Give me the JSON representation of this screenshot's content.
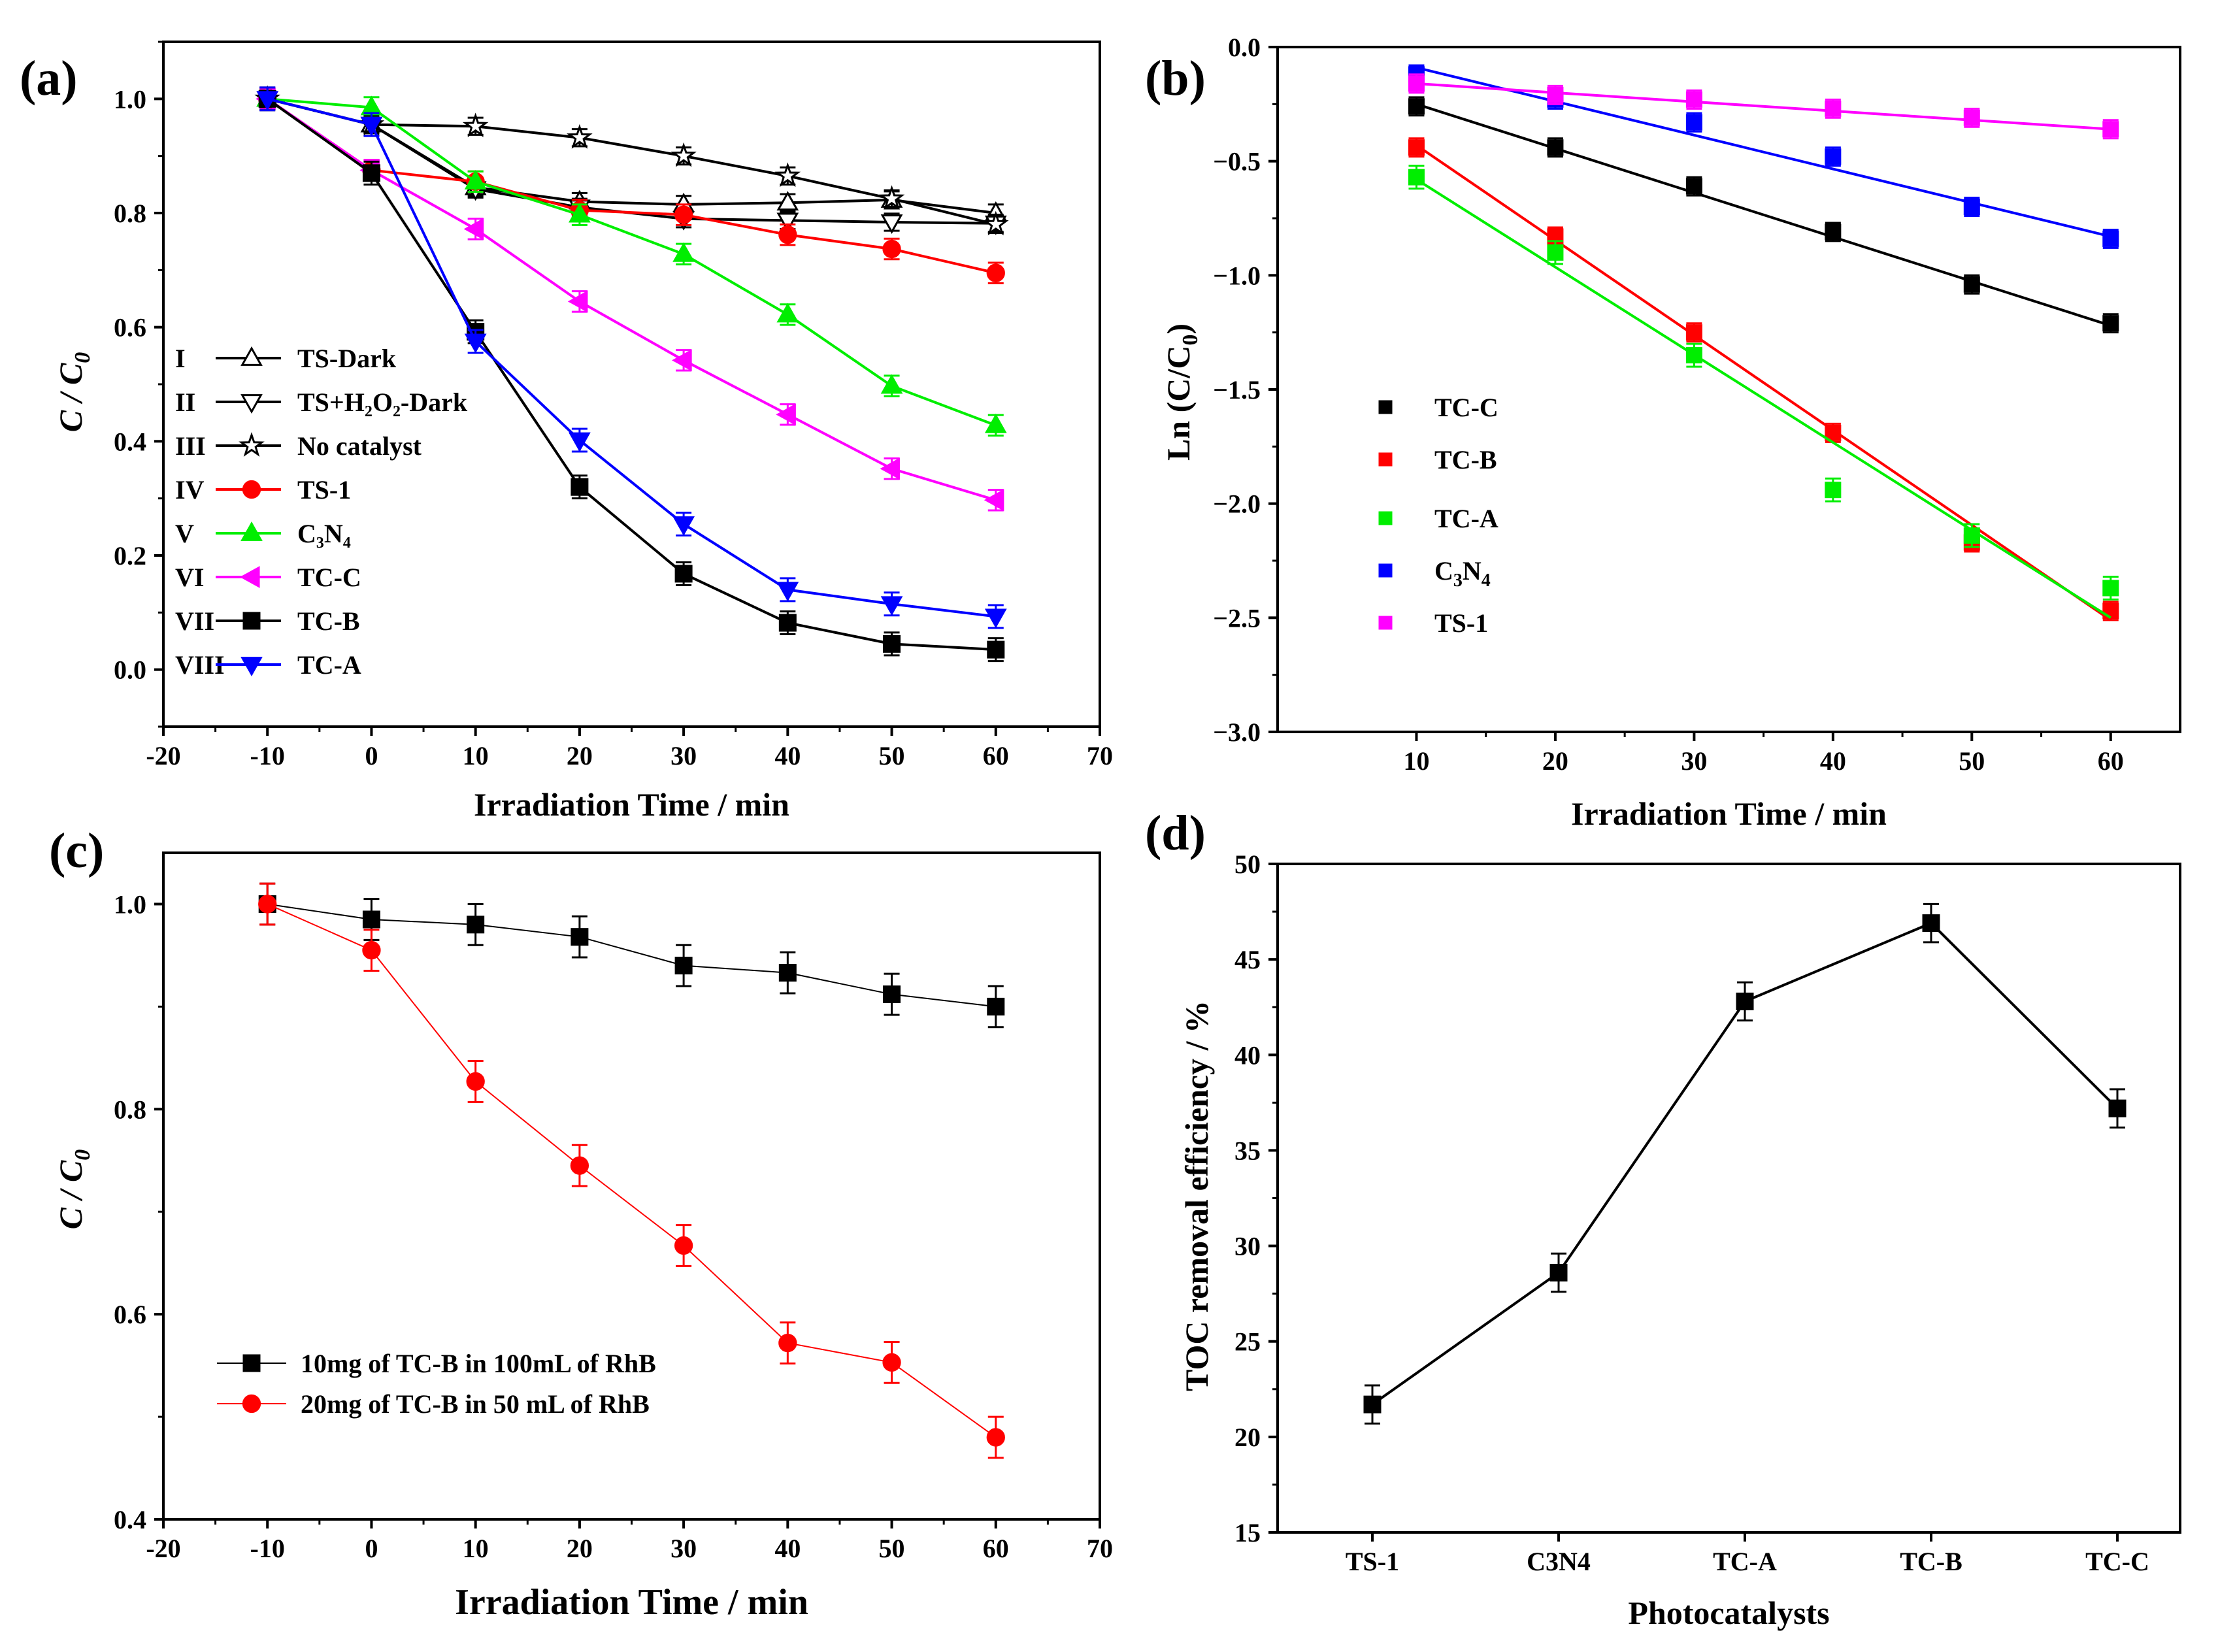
{
  "chart_data": [
    {
      "panel": "(a)",
      "type": "line",
      "xlabel": "Irradiation Time / min",
      "ylabel": "C / C₀",
      "xlim": [
        -20,
        70
      ],
      "ylim": [
        -0.1,
        1.1
      ],
      "xticks": [
        -20,
        -10,
        0,
        10,
        20,
        30,
        40,
        50,
        60,
        70
      ],
      "yticks": [
        0.0,
        0.2,
        0.4,
        0.6,
        0.8,
        1.0
      ],
      "legend_position": "bottom-left",
      "x": [
        -10,
        0,
        10,
        20,
        30,
        40,
        50,
        60
      ],
      "series": [
        {
          "roman": "I",
          "name": "TS-Dark",
          "color": "#000000",
          "marker": "triangle-up-open",
          "values": [
            1.0,
            0.955,
            0.845,
            0.82,
            0.815,
            0.818,
            0.823,
            0.8
          ],
          "err": 0.015
        },
        {
          "roman": "II",
          "name": "TS+H₂O₂-Dark",
          "color": "#000000",
          "marker": "triangle-down-open",
          "values": [
            1.0,
            0.955,
            0.842,
            0.81,
            0.79,
            0.787,
            0.784,
            0.782
          ],
          "err": 0.015
        },
        {
          "roman": "III",
          "name": "No catalyst",
          "color": "#000000",
          "marker": "star-open",
          "values": [
            1.0,
            0.955,
            0.952,
            0.932,
            0.9,
            0.865,
            0.825,
            0.78
          ],
          "err": 0.015
        },
        {
          "roman": "IV",
          "name": "TS-1",
          "color": "#ff0000",
          "marker": "circle",
          "values": [
            1.0,
            0.875,
            0.855,
            0.805,
            0.797,
            0.762,
            0.737,
            0.695
          ],
          "err": 0.018
        },
        {
          "roman": "V",
          "name": "C₃N₄",
          "color": "#00ee00",
          "marker": "triangle-up",
          "values": [
            1.0,
            0.985,
            0.855,
            0.797,
            0.728,
            0.622,
            0.497,
            0.428
          ],
          "err": 0.018
        },
        {
          "roman": "VI",
          "name": "TC-C",
          "color": "#ff00ff",
          "marker": "triangle-left",
          "values": [
            1.0,
            0.875,
            0.772,
            0.645,
            0.542,
            0.447,
            0.352,
            0.297
          ],
          "err": 0.018
        },
        {
          "roman": "VII",
          "name": "TC-B",
          "color": "#000000",
          "marker": "square",
          "values": [
            1.0,
            0.87,
            0.592,
            0.32,
            0.168,
            0.082,
            0.045,
            0.035
          ],
          "err": 0.02
        },
        {
          "roman": "VIII",
          "name": "TC-A",
          "color": "#0000ff",
          "marker": "triangle-down",
          "values": [
            1.0,
            0.955,
            0.575,
            0.402,
            0.255,
            0.14,
            0.115,
            0.093
          ],
          "err": 0.02
        }
      ]
    },
    {
      "panel": "(b)",
      "type": "scatter",
      "xlabel": "Irradiation Time / min",
      "ylabel": "Ln (C/C₀)",
      "xlim": [
        0,
        65
      ],
      "ylim": [
        -3.0,
        0.0
      ],
      "xticks": [
        10,
        20,
        30,
        40,
        50,
        60
      ],
      "yticks": [
        0.0,
        -0.5,
        -1.0,
        -1.5,
        -2.0,
        -2.5,
        -3.0
      ],
      "legend_position": "left",
      "x": [
        10,
        20,
        30,
        40,
        50,
        60
      ],
      "series": [
        {
          "name": "TC-C",
          "color": "#000000",
          "values": [
            -0.26,
            -0.44,
            -0.61,
            -0.81,
            -1.04,
            -1.21
          ],
          "fit": [
            [
              10,
              -0.25
            ],
            [
              60,
              -1.22
            ]
          ],
          "err": 0.04
        },
        {
          "name": "TC-B",
          "color": "#ff0000",
          "values": [
            -0.44,
            -0.83,
            -1.25,
            -1.69,
            -2.17,
            -2.47
          ],
          "fit": [
            [
              10,
              -0.43
            ],
            [
              60,
              -2.51
            ]
          ],
          "err": 0.04
        },
        {
          "name": "TC-A",
          "color": "#00ee00",
          "values": [
            -0.57,
            -0.9,
            -1.35,
            -1.94,
            -2.14,
            -2.37
          ],
          "fit": [
            [
              10,
              -0.58
            ],
            [
              60,
              -2.5
            ]
          ],
          "err": 0.05
        },
        {
          "name": "C₃N₄",
          "color": "#0000ff",
          "values": [
            -0.12,
            -0.23,
            -0.33,
            -0.48,
            -0.7,
            -0.84
          ],
          "fit": [
            [
              10,
              -0.09
            ],
            [
              60,
              -0.83
            ]
          ],
          "err": 0.04
        },
        {
          "name": "TS-1",
          "color": "#ff00ff",
          "values": [
            -0.16,
            -0.21,
            -0.23,
            -0.27,
            -0.31,
            -0.36
          ],
          "fit": [
            [
              10,
              -0.16
            ],
            [
              60,
              -0.36
            ]
          ],
          "err": 0.04
        }
      ]
    },
    {
      "panel": "(c)",
      "type": "line",
      "xlabel": "Irradiation Time / min",
      "ylabel": "C / C₀",
      "xlim": [
        -20,
        70
      ],
      "ylim": [
        0.4,
        1.05
      ],
      "xticks": [
        -20,
        -10,
        0,
        10,
        20,
        30,
        40,
        50,
        60,
        70
      ],
      "yticks": [
        0.4,
        0.6,
        0.8,
        1.0
      ],
      "legend_position": "bottom-left",
      "x": [
        -10,
        0,
        10,
        20,
        30,
        40,
        50,
        60
      ],
      "series": [
        {
          "name": "10mg of TC-B in 100mL of RhB",
          "color": "#000000",
          "marker": "square",
          "values": [
            1.0,
            0.985,
            0.98,
            0.968,
            0.94,
            0.933,
            0.912,
            0.9
          ],
          "err": 0.02
        },
        {
          "name": "20mg of TC-B in 50 mL of  RhB",
          "color": "#ff0000",
          "marker": "circle",
          "values": [
            1.0,
            0.955,
            0.827,
            0.745,
            0.667,
            0.572,
            0.553,
            0.48
          ],
          "err": 0.02
        }
      ]
    },
    {
      "panel": "(d)",
      "type": "line",
      "xlabel": "Photocatalysts",
      "ylabel": "TOC removal efficiency / %",
      "ylim": [
        15,
        50
      ],
      "yticks": [
        15,
        20,
        25,
        30,
        35,
        40,
        45,
        50
      ],
      "categories": [
        "TS-1",
        "C3N4",
        "TC-A",
        "TC-B",
        "TC-C"
      ],
      "series": [
        {
          "name": "TOC removal efficiency",
          "color": "#000000",
          "marker": "square",
          "values": [
            21.7,
            28.6,
            42.8,
            46.9,
            37.2
          ],
          "err": 1.0
        }
      ]
    }
  ]
}
